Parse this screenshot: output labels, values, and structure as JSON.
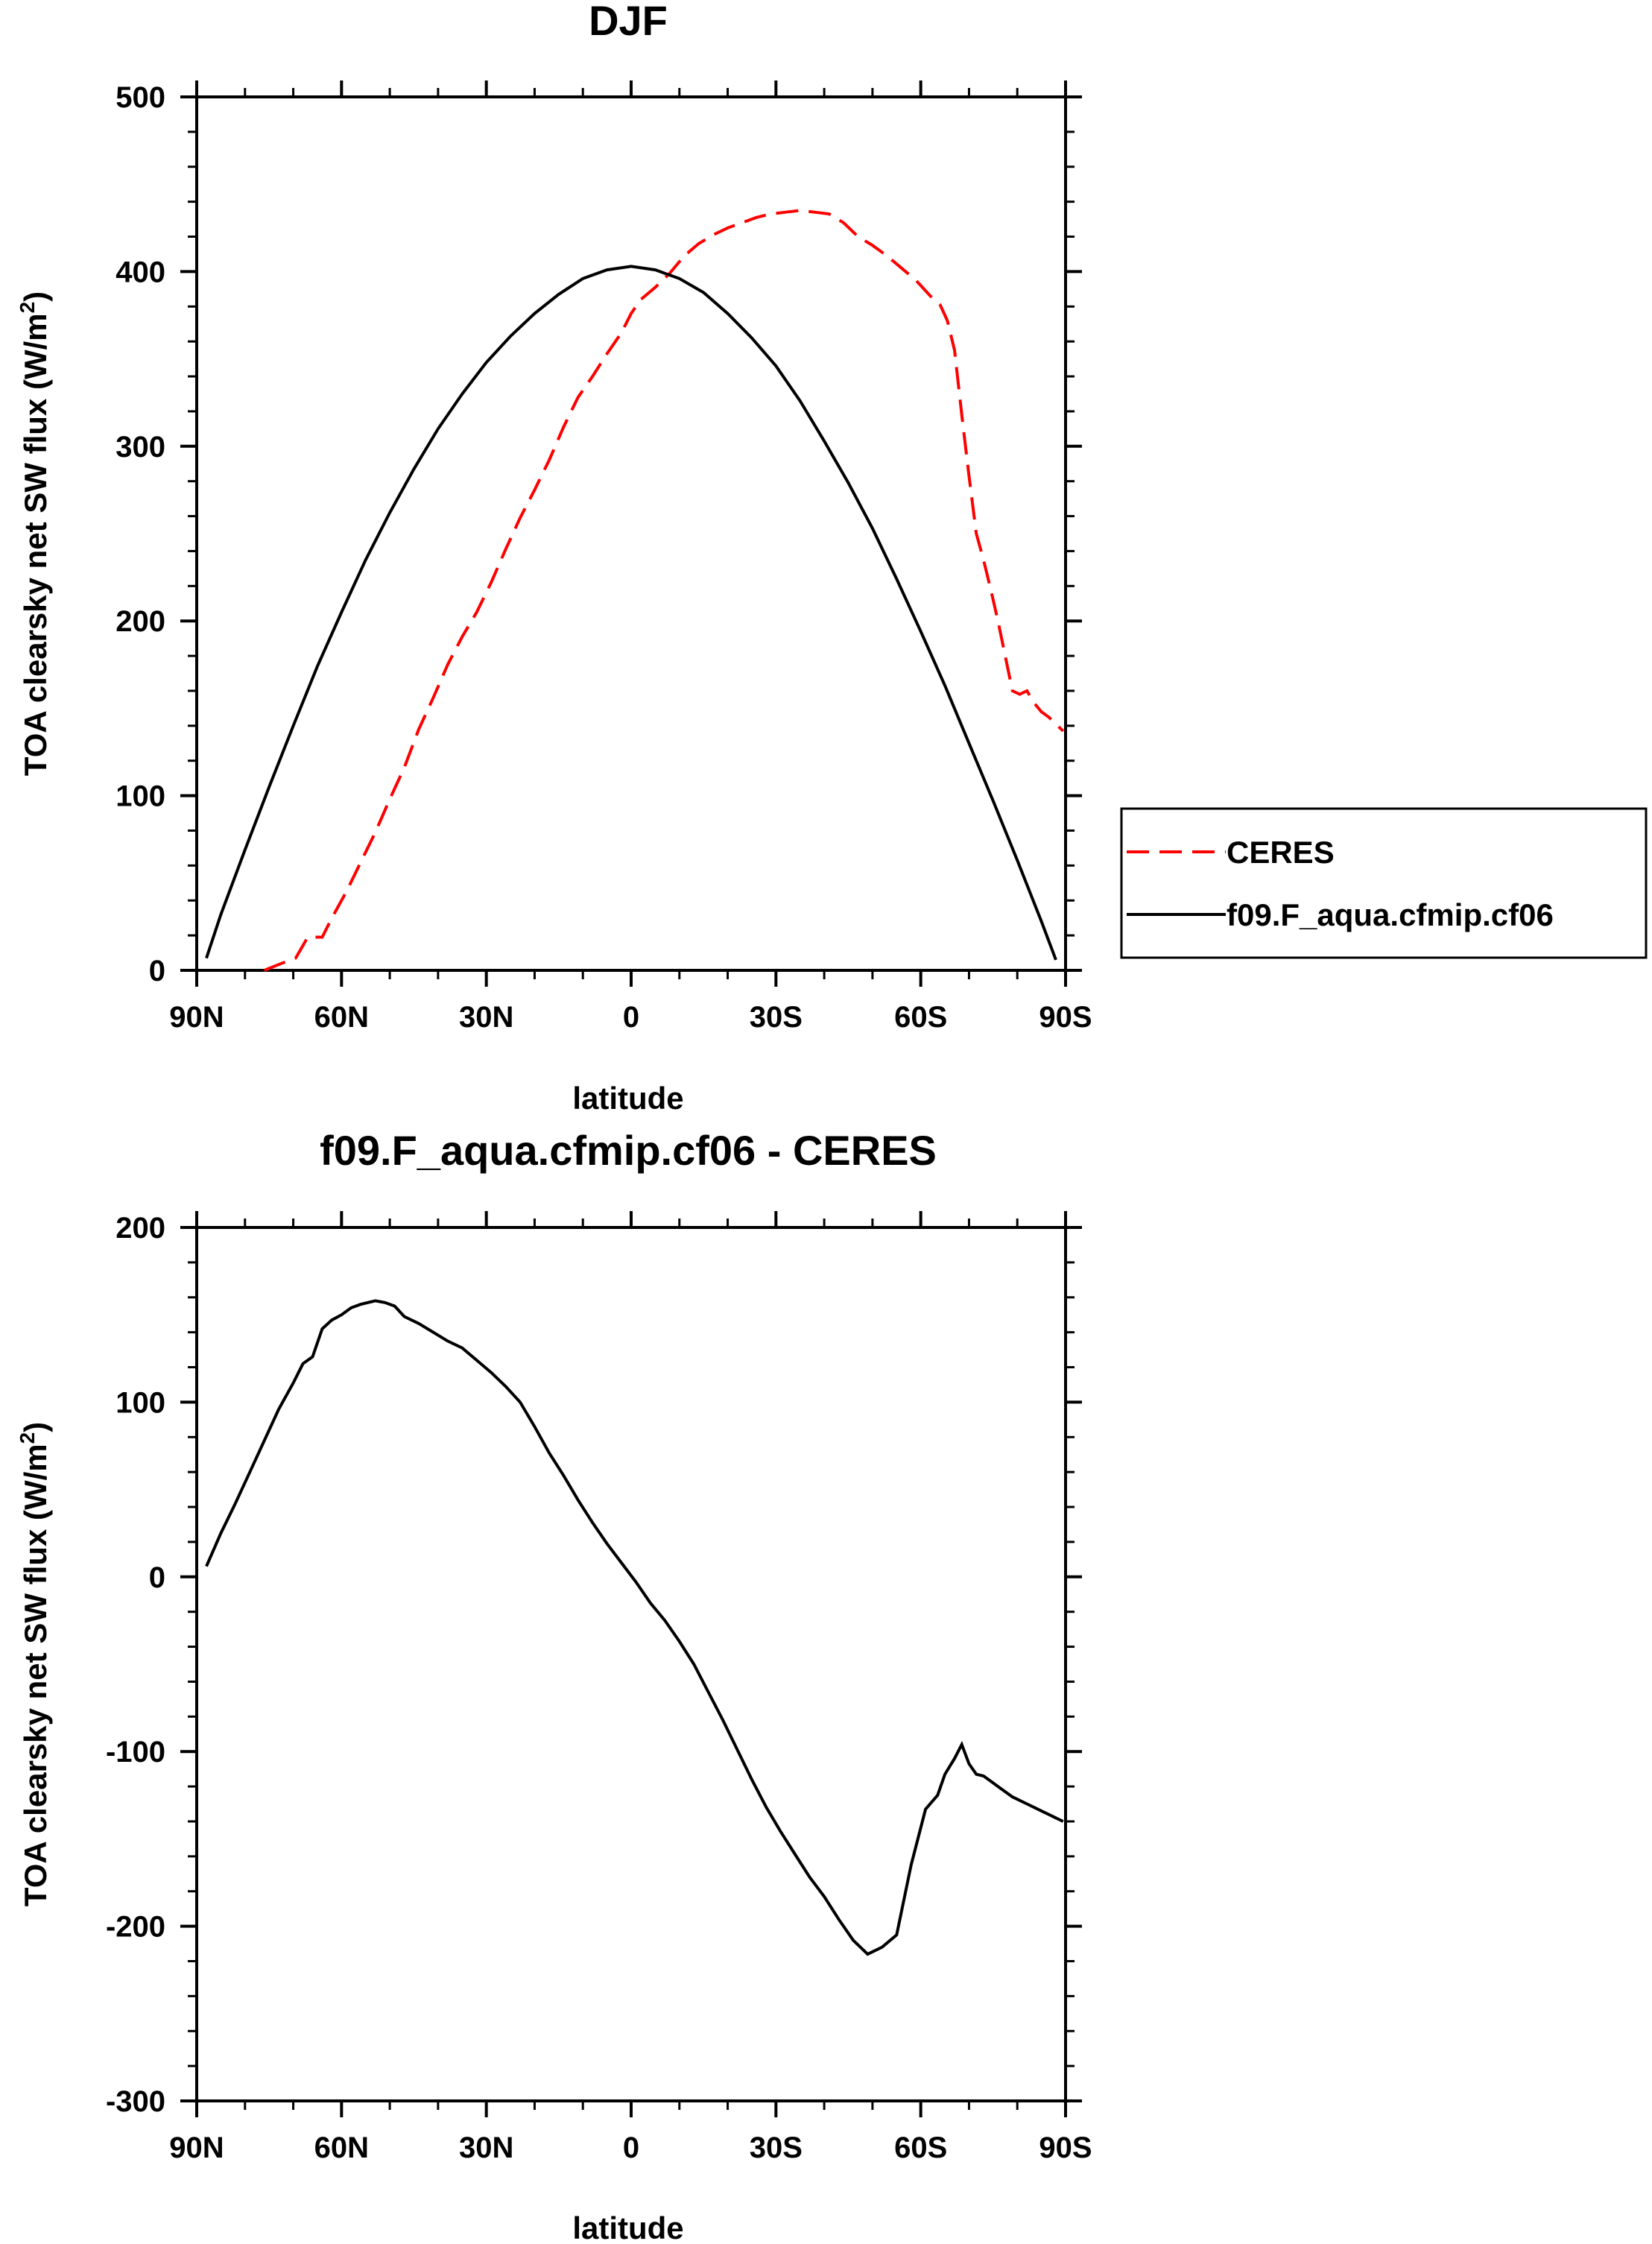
{
  "chart_data": [
    {
      "type": "line",
      "title": "DJF",
      "xlabel": "latitude",
      "ylabel": "TOA clearsky net SW flux (W/m",
      "ylabel_sup": "2",
      "ylabel_end": ")",
      "xlim": [
        90,
        -90
      ],
      "ylim": [
        0,
        500
      ],
      "xticks": [
        90,
        60,
        30,
        0,
        -30,
        -60,
        -90
      ],
      "xtick_labels": [
        "90N",
        "60N",
        "30N",
        "0",
        "30S",
        "60S",
        "90S"
      ],
      "yticks": [
        0,
        100,
        200,
        300,
        400,
        500
      ],
      "ytick_labels": [
        "0",
        "100",
        "200",
        "300",
        "400",
        "500"
      ],
      "grid": false,
      "legend_position": "right",
      "series": [
        {
          "name": "CERES",
          "color": "#ff0000",
          "style": "dashed",
          "x": [
            76,
            71.5,
            69.5,
            67,
            64,
            62,
            59,
            56,
            53,
            50,
            47,
            44,
            41,
            38,
            35,
            32,
            29,
            26,
            23,
            20,
            17,
            14,
            11,
            8,
            5,
            2,
            0,
            -2,
            -5,
            -8,
            -11,
            -14,
            -17,
            -20,
            -23,
            -26,
            -29,
            -32,
            -35,
            -38,
            -41,
            -44,
            -47,
            -50,
            -53,
            -56,
            -59,
            -62,
            -64,
            -65.5,
            -67,
            -68.5,
            -70,
            -71.5,
            -73,
            -74.5,
            -76,
            -77.5,
            -79,
            -80.5,
            -82,
            -83.5,
            -85,
            -86.5,
            -88,
            -89.5
          ],
          "y": [
            0,
            5,
            7,
            19,
            19,
            30,
            45,
            62,
            79,
            98,
            116,
            138,
            156,
            175,
            191,
            205,
            222,
            241,
            259,
            275,
            292,
            311,
            328,
            340,
            353,
            365,
            376,
            384,
            391,
            399,
            409,
            416,
            421,
            425,
            428,
            431,
            433,
            434,
            435,
            434,
            433,
            428,
            420,
            415,
            409,
            402,
            395,
            386,
            381,
            372,
            355,
            318,
            283,
            250,
            235,
            218,
            200,
            180,
            160,
            158,
            160,
            153,
            148,
            145,
            141,
            137
          ]
        },
        {
          "name": "f09.F_aqua.cfmip.cf06",
          "color": "#000000",
          "style": "solid",
          "x": [
            88,
            85,
            80,
            75,
            70,
            65,
            60,
            55,
            50,
            45,
            40,
            35,
            30,
            25,
            20,
            15,
            10,
            5,
            0,
            -5,
            -10,
            -15,
            -20,
            -25,
            -30,
            -35,
            -40,
            -45,
            -50,
            -55,
            -60,
            -65,
            -70,
            -75,
            -80,
            -85,
            -88
          ],
          "y": [
            7,
            32,
            69,
            105,
            140,
            174,
            205,
            235,
            262,
            287,
            310,
            330,
            348,
            363,
            376,
            387,
            396,
            401,
            403,
            401,
            396,
            388,
            376,
            362,
            346,
            326,
            303,
            279,
            253,
            224,
            194,
            163,
            130,
            97,
            63,
            28,
            6
          ]
        }
      ]
    },
    {
      "type": "line",
      "title": "f09.F_aqua.cfmip.cf06 - CERES",
      "xlabel": "latitude",
      "ylabel": "TOA clearsky net SW flux (W/m",
      "ylabel_sup": "2",
      "ylabel_end": ")",
      "xlim": [
        90,
        -90
      ],
      "ylim": [
        -300,
        200
      ],
      "xticks": [
        90,
        60,
        30,
        0,
        -30,
        -60,
        -90
      ],
      "xtick_labels": [
        "90N",
        "60N",
        "30N",
        "0",
        "30S",
        "60S",
        "90S"
      ],
      "yticks": [
        -300,
        -200,
        -100,
        0,
        100,
        200
      ],
      "ytick_labels": [
        "-300",
        "-200",
        "-100",
        "0",
        "100",
        "200"
      ],
      "grid": false,
      "series": [
        {
          "name": "f09.F_aqua.cfmip.cf06 - CERES",
          "color": "#000000",
          "style": "solid",
          "x": [
            88,
            85,
            82,
            79,
            76,
            73,
            70,
            68,
            66,
            64,
            62,
            60,
            58,
            56,
            53,
            51,
            49,
            47,
            44,
            41,
            38,
            35,
            32,
            29,
            26,
            23,
            20,
            17,
            14,
            11,
            8,
            5,
            2,
            -1,
            -4,
            -7,
            -10,
            -13,
            -16,
            -19,
            -22,
            -25,
            -28,
            -31,
            -34,
            -37,
            -40,
            -43,
            -46,
            -49,
            -52,
            -55,
            -58,
            -61,
            -63.5,
            -65,
            -67,
            -68.5,
            -70,
            -71.5,
            -73,
            -74.5,
            -76,
            -77.5,
            -79,
            -80.5,
            -82,
            -83.5,
            -85,
            -86.5,
            -88,
            -89.5
          ],
          "y": [
            6,
            25,
            42,
            60,
            78,
            96,
            111,
            122,
            126,
            142,
            147,
            150,
            154,
            156,
            158,
            157,
            155,
            149,
            145,
            140,
            135,
            131,
            124,
            117,
            109,
            100,
            86,
            71,
            58,
            44,
            31,
            19,
            8,
            -3,
            -15,
            -25,
            -37,
            -50,
            -66,
            -82,
            -99,
            -116,
            -132,
            -146,
            -159,
            -172,
            -183,
            -196,
            -208,
            -216,
            -212,
            -205,
            -165,
            -133,
            -125,
            -113,
            -104,
            -96,
            -107,
            -113,
            -114,
            -117,
            -120,
            -123,
            -126,
            -128,
            -130,
            -132,
            -134,
            -136,
            -138,
            -140
          ]
        }
      ]
    }
  ]
}
